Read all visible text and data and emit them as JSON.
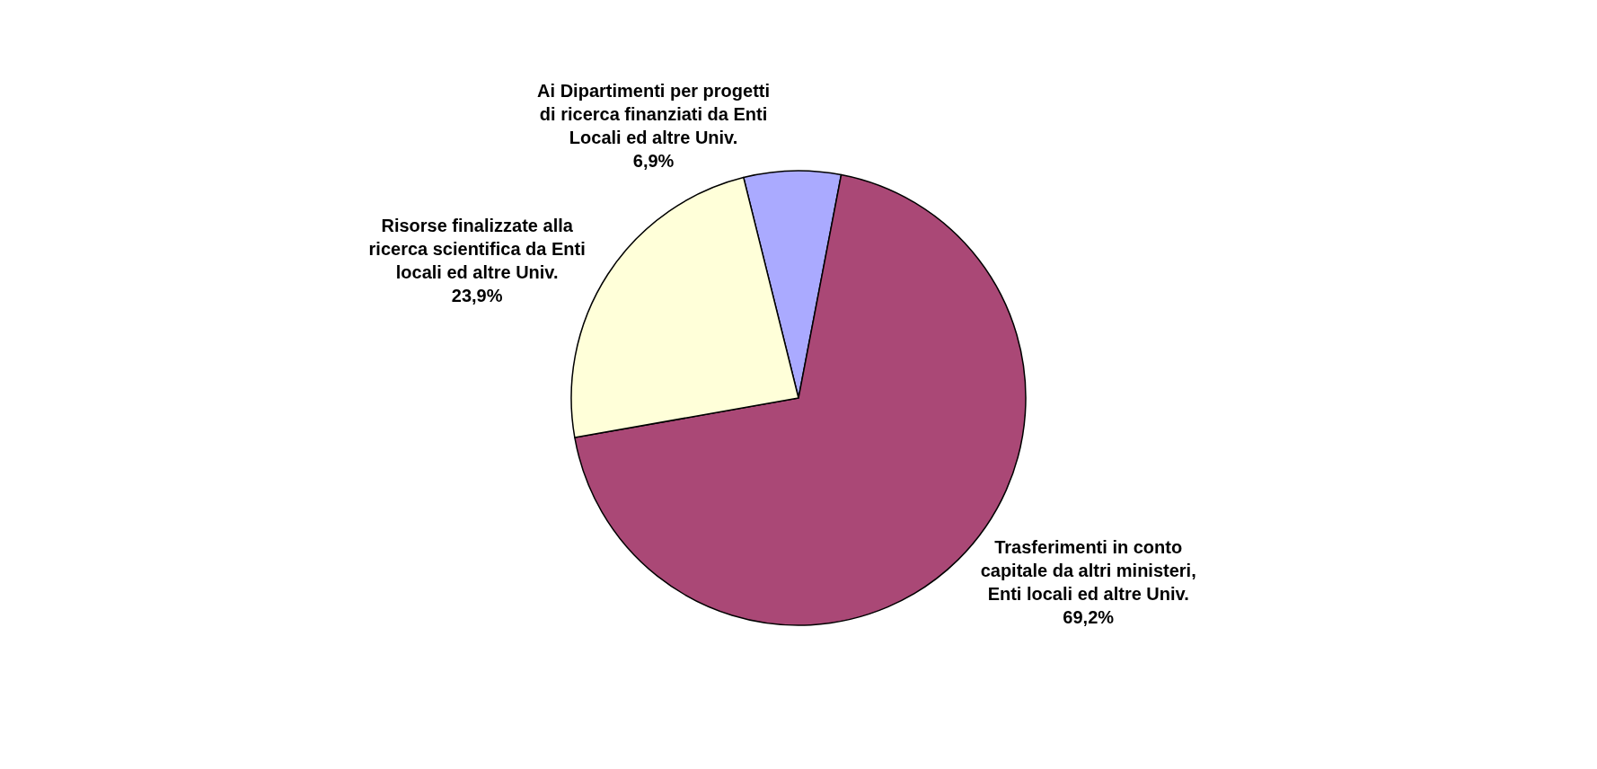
{
  "chart_data": {
    "type": "pie",
    "categories": [
      "Ai Dipartimenti per progetti di ricerca finanziati da Enti Locali ed altre Univ.",
      "Trasferimenti in conto capitale da altri ministeri, Enti locali ed altre Univ.",
      "Risorse finalizzate alla ricerca scientifica da Enti locali ed altre Univ."
    ],
    "values": [
      6.9,
      69.2,
      23.9
    ],
    "value_labels": [
      "6,9%",
      "69,2%",
      "23,9%"
    ],
    "colors": [
      "#aaaaff",
      "#aa4876",
      "#ffffd9"
    ],
    "legend": false
  }
}
